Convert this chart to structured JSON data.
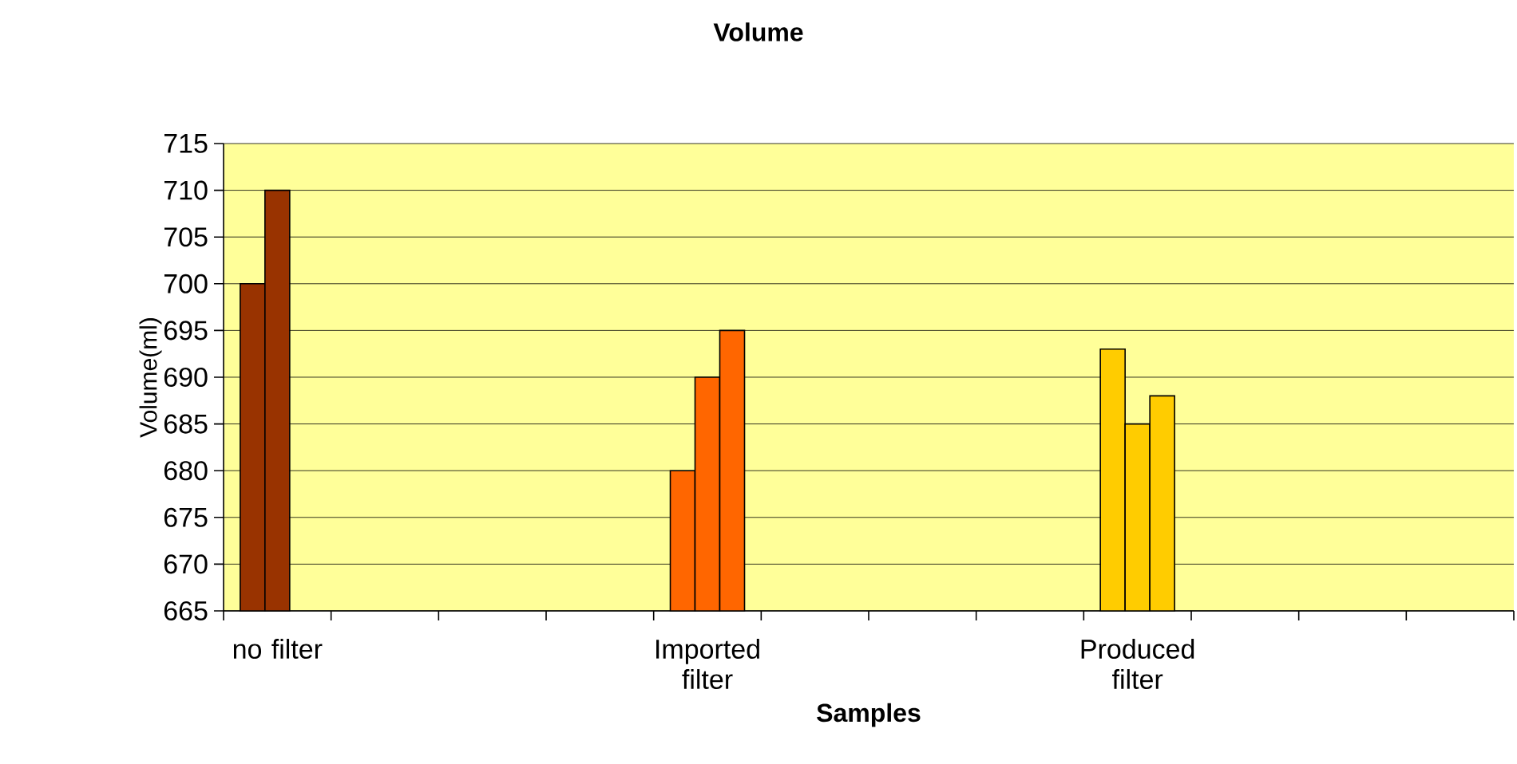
{
  "chart_data": {
    "type": "bar",
    "title": "Volume",
    "xlabel": "Samples",
    "ylabel": "Volume(ml)",
    "categories": [
      "no filter",
      null,
      null,
      null,
      "Imported filter",
      null,
      null,
      null,
      "Produced filter",
      null,
      null,
      null
    ],
    "series": [
      {
        "values": [
          700,
          null,
          null,
          null,
          680,
          null,
          null,
          null,
          693,
          null,
          null,
          null
        ],
        "colors": [
          "#993300",
          null,
          null,
          null,
          "#ff6600",
          null,
          null,
          null,
          "#ffcc00",
          null,
          null,
          null
        ]
      },
      {
        "values": [
          710,
          null,
          null,
          null,
          690,
          null,
          null,
          null,
          685,
          null,
          null,
          null
        ],
        "colors": [
          "#993300",
          null,
          null,
          null,
          "#ff6600",
          null,
          null,
          null,
          "#ffcc00",
          null,
          null,
          null
        ]
      },
      {
        "values": [
          null,
          null,
          null,
          null,
          695,
          null,
          null,
          null,
          688,
          null,
          null,
          null
        ],
        "colors": [
          null,
          null,
          null,
          null,
          "#ff6600",
          null,
          null,
          null,
          "#ffcc00",
          null,
          null,
          null
        ]
      }
    ],
    "ylim": [
      665,
      715
    ],
    "yticks": [
      665,
      670,
      675,
      680,
      685,
      690,
      695,
      700,
      705,
      710,
      715
    ],
    "grid": "y"
  }
}
